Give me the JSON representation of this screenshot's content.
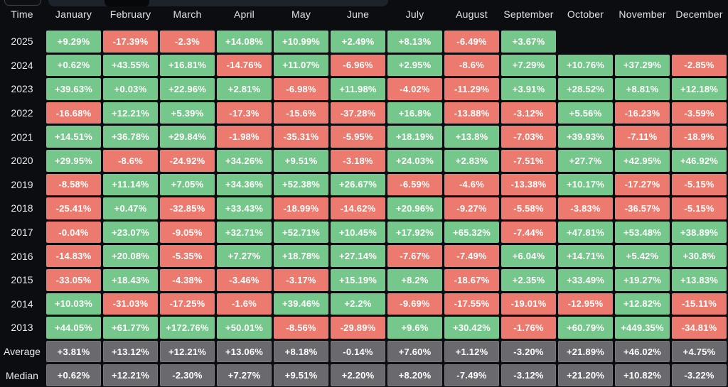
{
  "topbar": {
    "fragments": [
      "partial-button",
      "partial-tabstrip",
      "dark-notch"
    ]
  },
  "chart_data": {
    "type": "heatmap",
    "corner_label": "Time",
    "columns": [
      "January",
      "February",
      "March",
      "April",
      "May",
      "June",
      "July",
      "August",
      "September",
      "October",
      "November",
      "December"
    ],
    "rows": [
      {
        "label": "2025",
        "kind": "year",
        "values": [
          "+9.29%",
          "-17.39%",
          "-2.3%",
          "+14.08%",
          "+10.99%",
          "+2.49%",
          "+8.13%",
          "-6.49%",
          "+3.67%",
          null,
          null,
          null
        ]
      },
      {
        "label": "2024",
        "kind": "year",
        "values": [
          "+0.62%",
          "+43.55%",
          "+16.81%",
          "-14.76%",
          "+11.07%",
          "-6.96%",
          "+2.95%",
          "-8.6%",
          "+7.29%",
          "+10.76%",
          "+37.29%",
          "-2.85%"
        ]
      },
      {
        "label": "2023",
        "kind": "year",
        "values": [
          "+39.63%",
          "+0.03%",
          "+22.96%",
          "+2.81%",
          "-6.98%",
          "+11.98%",
          "-4.02%",
          "-11.29%",
          "+3.91%",
          "+28.52%",
          "+8.81%",
          "+12.18%"
        ]
      },
      {
        "label": "2022",
        "kind": "year",
        "values": [
          "-16.68%",
          "+12.21%",
          "+5.39%",
          "-17.3%",
          "-15.6%",
          "-37.28%",
          "+16.8%",
          "-13.88%",
          "-3.12%",
          "+5.56%",
          "-16.23%",
          "-3.59%"
        ]
      },
      {
        "label": "2021",
        "kind": "year",
        "values": [
          "+14.51%",
          "+36.78%",
          "+29.84%",
          "-1.98%",
          "-35.31%",
          "-5.95%",
          "+18.19%",
          "+13.8%",
          "-7.03%",
          "+39.93%",
          "-7.11%",
          "-18.9%"
        ]
      },
      {
        "label": "2020",
        "kind": "year",
        "values": [
          "+29.95%",
          "-8.6%",
          "-24.92%",
          "+34.26%",
          "+9.51%",
          "-3.18%",
          "+24.03%",
          "+2.83%",
          "-7.51%",
          "+27.7%",
          "+42.95%",
          "+46.92%"
        ]
      },
      {
        "label": "2019",
        "kind": "year",
        "values": [
          "-8.58%",
          "+11.14%",
          "+7.05%",
          "+34.36%",
          "+52.38%",
          "+26.67%",
          "-6.59%",
          "-4.6%",
          "-13.38%",
          "+10.17%",
          "-17.27%",
          "-5.15%"
        ]
      },
      {
        "label": "2018",
        "kind": "year",
        "values": [
          "-25.41%",
          "+0.47%",
          "-32.85%",
          "+33.43%",
          "-18.99%",
          "-14.62%",
          "+20.96%",
          "-9.27%",
          "-5.58%",
          "-3.83%",
          "-36.57%",
          "-5.15%"
        ]
      },
      {
        "label": "2017",
        "kind": "year",
        "values": [
          "-0.04%",
          "+23.07%",
          "-9.05%",
          "+32.71%",
          "+52.71%",
          "+10.45%",
          "+17.92%",
          "+65.32%",
          "-7.44%",
          "+47.81%",
          "+53.48%",
          "+38.89%"
        ]
      },
      {
        "label": "2016",
        "kind": "year",
        "values": [
          "-14.83%",
          "+20.08%",
          "-5.35%",
          "+7.27%",
          "+18.78%",
          "+27.14%",
          "-7.67%",
          "-7.49%",
          "+6.04%",
          "+14.71%",
          "+5.42%",
          "+30.8%"
        ]
      },
      {
        "label": "2015",
        "kind": "year",
        "values": [
          "-33.05%",
          "+18.43%",
          "-4.38%",
          "-3.46%",
          "-3.17%",
          "+15.19%",
          "+8.2%",
          "-18.67%",
          "+2.35%",
          "+33.49%",
          "+19.27%",
          "+13.83%"
        ]
      },
      {
        "label": "2014",
        "kind": "year",
        "values": [
          "+10.03%",
          "-31.03%",
          "-17.25%",
          "-1.6%",
          "+39.46%",
          "+2.2%",
          "-9.69%",
          "-17.55%",
          "-19.01%",
          "-12.95%",
          "+12.82%",
          "-15.11%"
        ]
      },
      {
        "label": "2013",
        "kind": "year",
        "values": [
          "+44.05%",
          "+61.77%",
          "+172.76%",
          "+50.01%",
          "-8.56%",
          "-29.89%",
          "+9.6%",
          "+30.42%",
          "-1.76%",
          "+60.79%",
          "+449.35%",
          "-34.81%"
        ]
      },
      {
        "label": "Average",
        "kind": "summary",
        "values": [
          "+3.81%",
          "+13.12%",
          "+12.21%",
          "+13.06%",
          "+8.18%",
          "-0.14%",
          "+7.60%",
          "+1.12%",
          "-3.20%",
          "+21.89%",
          "+46.02%",
          "+4.75%"
        ]
      },
      {
        "label": "Median",
        "kind": "summary",
        "values": [
          "+0.62%",
          "+12.21%",
          "-2.30%",
          "+7.27%",
          "+9.51%",
          "+2.20%",
          "+8.20%",
          "-7.49%",
          "-3.12%",
          "+21.20%",
          "+10.82%",
          "-3.22%"
        ]
      }
    ],
    "colors": {
      "positive": "#76c78b",
      "negative": "#ec7a6e",
      "summary": "#6a6a6e",
      "background": "#0c0d11"
    },
    "legend_position": "none",
    "grid": false
  }
}
